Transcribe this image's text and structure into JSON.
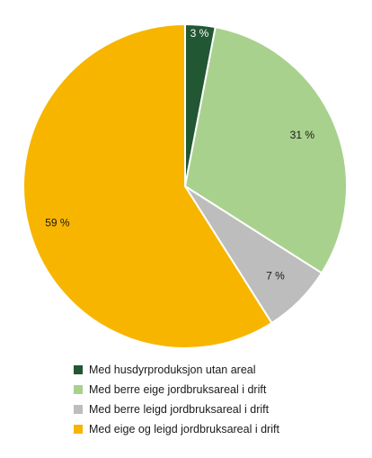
{
  "chart_data": {
    "type": "pie",
    "slices": [
      {
        "name": "Med husdyrproduksjon utan areal",
        "value": 3,
        "label": "3 %",
        "color": "#215732"
      },
      {
        "name": "Med berre eige jordbruksareal i drift",
        "value": 31,
        "label": "31 %",
        "color": "#a9d18e"
      },
      {
        "name": "Med berre leigd jordbruksareal i drift",
        "value": 7,
        "label": "7 %",
        "color": "#bdbdbd"
      },
      {
        "name": "Med eige og leigd jordbruksareal i drift",
        "value": 59,
        "label": "59 %",
        "color": "#f7b500"
      }
    ],
    "start_angle": "12 o'clock",
    "direction": "clockwise",
    "legend_position": "bottom-left"
  }
}
